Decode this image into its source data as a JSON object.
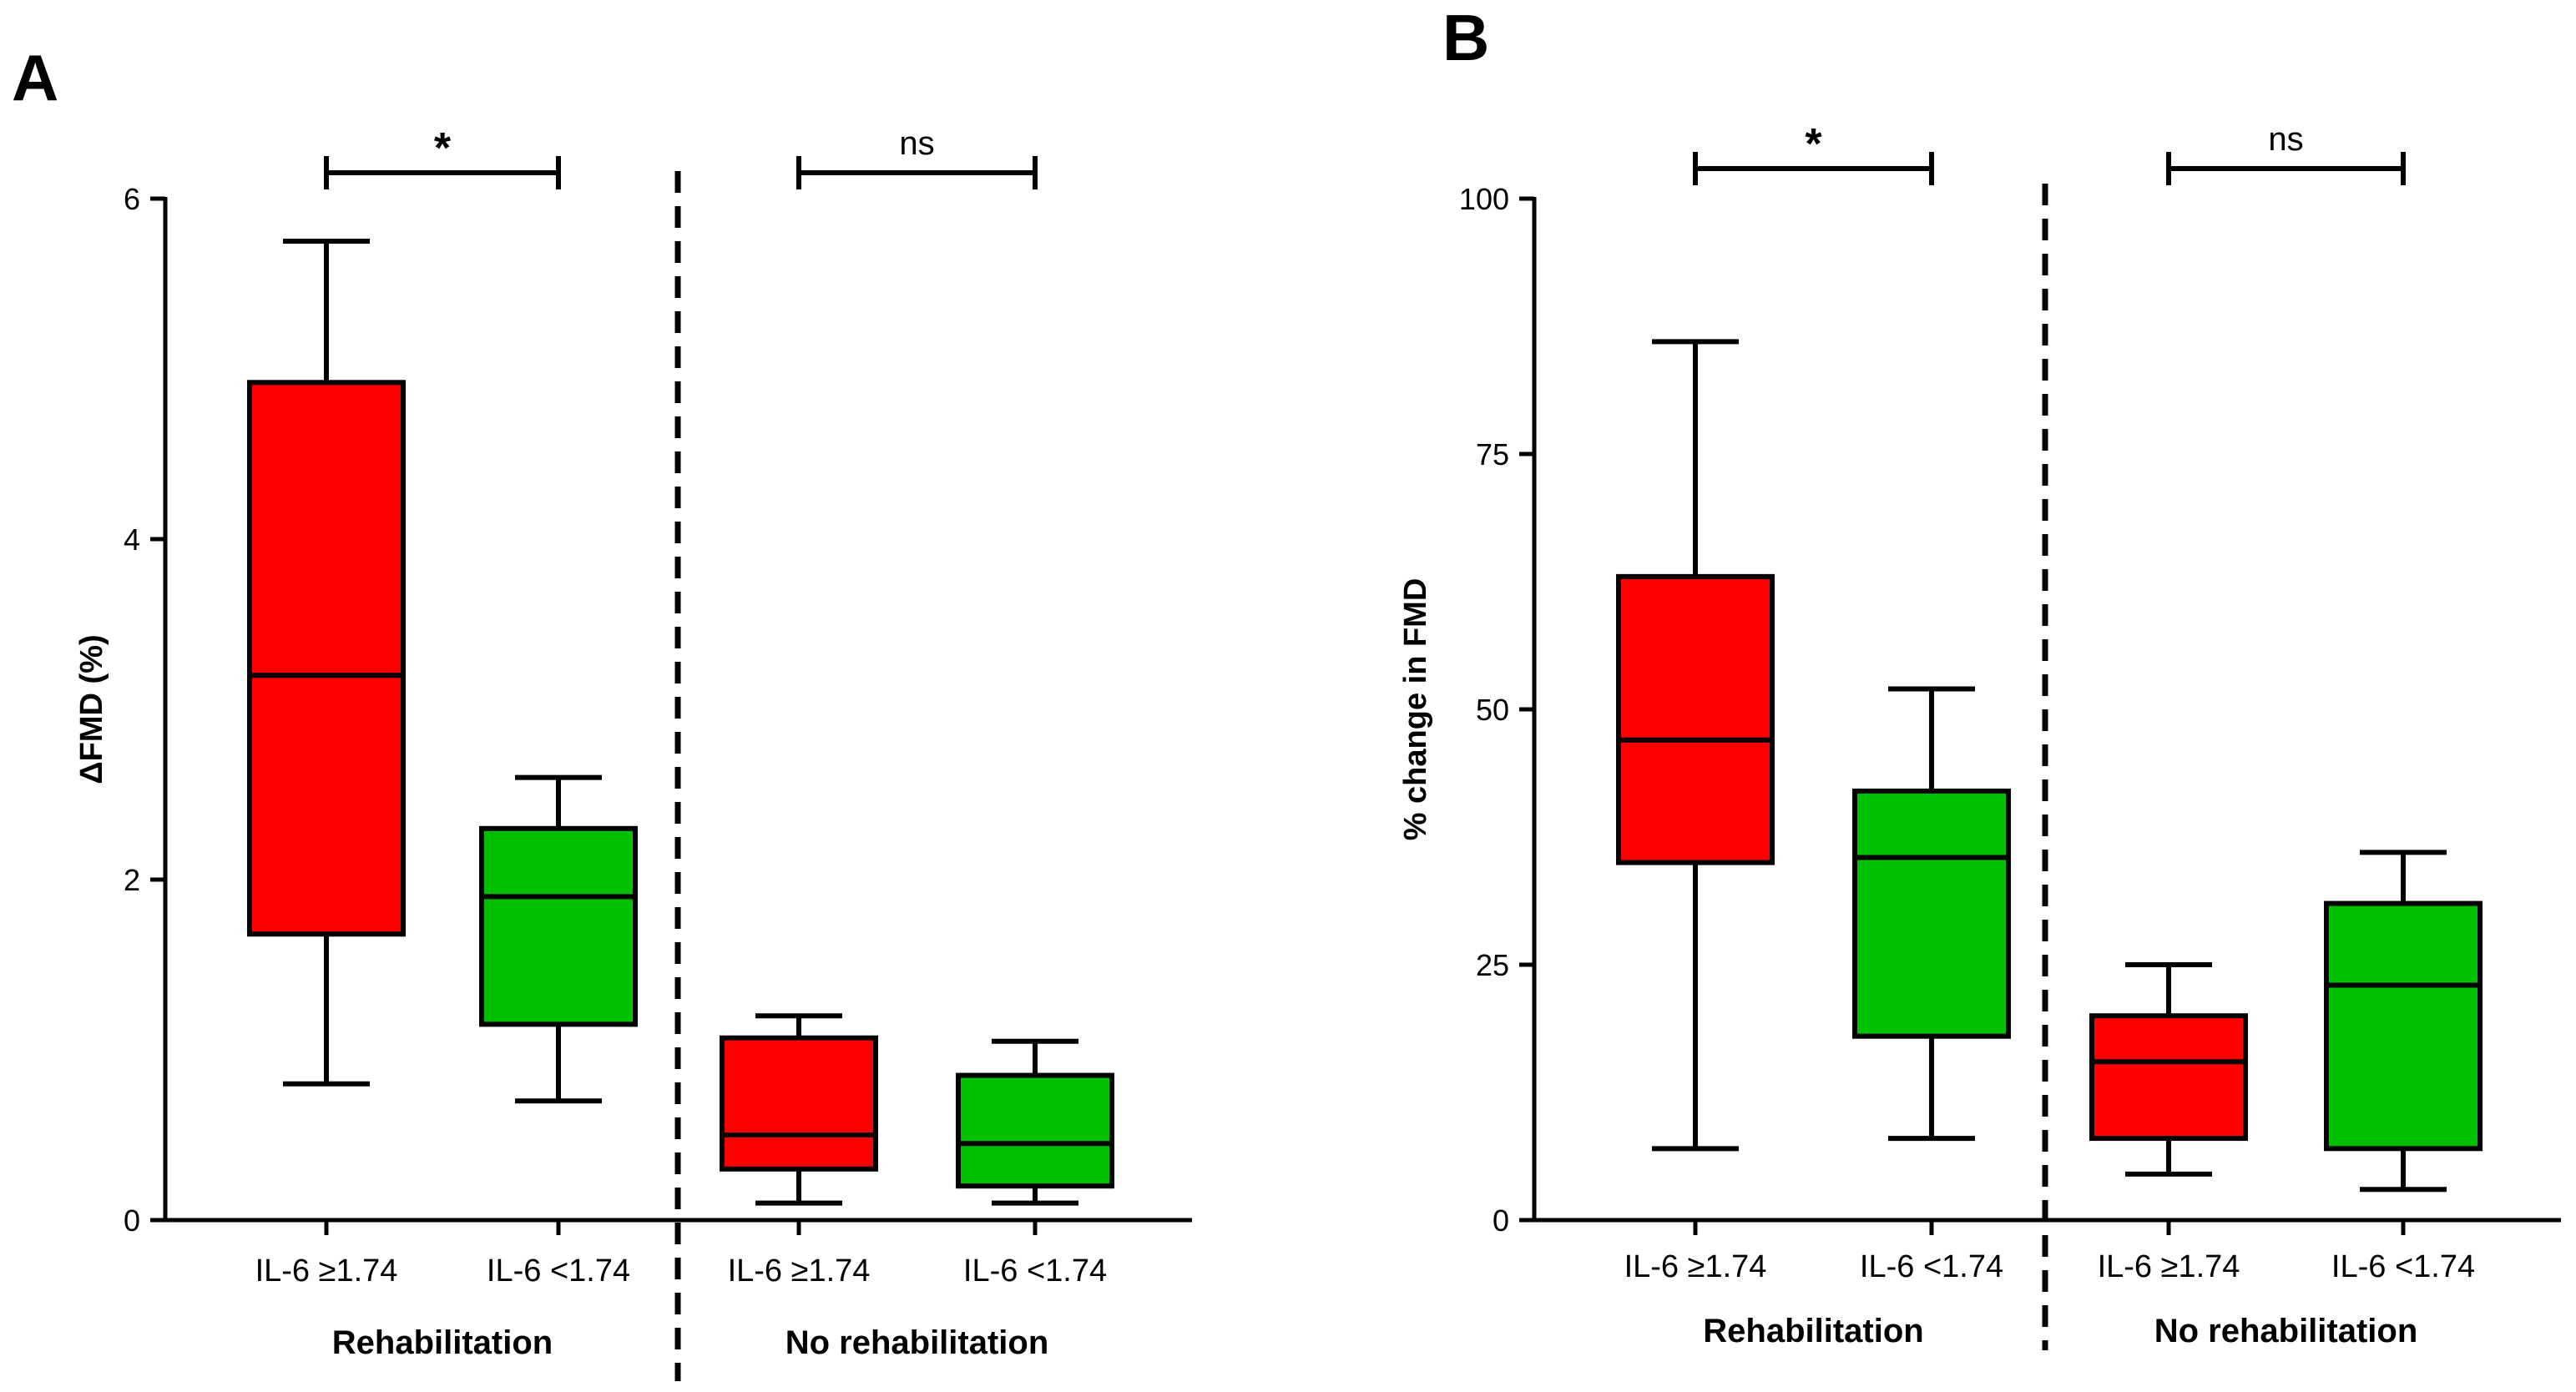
{
  "chart_data": [
    {
      "panel": "A",
      "type": "box",
      "ylabel": "ΔFMD (%)",
      "ylim": [
        0,
        6
      ],
      "yticks": [
        0,
        2,
        4,
        6
      ],
      "categories": [
        "IL-6 ≥1.74",
        "IL-6 <1.74",
        "IL-6 ≥1.74",
        "IL-6 <1.74"
      ],
      "groups": [
        {
          "label": "Rehabilitation",
          "members": [
            0,
            1
          ]
        },
        {
          "label": "No rehabilitation",
          "members": [
            2,
            3
          ]
        }
      ],
      "boxes": [
        {
          "min": 0.8,
          "q1": 1.68,
          "median": 3.2,
          "q3": 4.92,
          "max": 5.75,
          "color": "#ff0000"
        },
        {
          "min": 0.7,
          "q1": 1.15,
          "median": 1.9,
          "q3": 2.3,
          "max": 2.6,
          "color": "#00c000"
        },
        {
          "min": 0.1,
          "q1": 0.3,
          "median": 0.5,
          "q3": 1.07,
          "max": 1.2,
          "color": "#ff0000"
        },
        {
          "min": 0.1,
          "q1": 0.2,
          "median": 0.45,
          "q3": 0.85,
          "max": 1.05,
          "color": "#00c000"
        }
      ],
      "significance": [
        {
          "between": [
            0,
            1
          ],
          "label": "*"
        },
        {
          "between": [
            2,
            3
          ],
          "label": "ns"
        }
      ]
    },
    {
      "panel": "B",
      "type": "box",
      "ylabel": "% change in FMD",
      "ylim": [
        0,
        100
      ],
      "yticks": [
        0,
        25,
        50,
        75,
        100
      ],
      "categories": [
        "IL-6 ≥1.74",
        "IL-6 <1.74",
        "IL-6 ≥1.74",
        "IL-6 <1.74"
      ],
      "groups": [
        {
          "label": "Rehabilitation",
          "members": [
            0,
            1
          ]
        },
        {
          "label": "No rehabilitation",
          "members": [
            2,
            3
          ]
        }
      ],
      "boxes": [
        {
          "min": 7,
          "q1": 35,
          "median": 47,
          "q3": 63,
          "max": 86,
          "color": "#ff0000"
        },
        {
          "min": 8,
          "q1": 18,
          "median": 35.5,
          "q3": 42,
          "max": 52,
          "color": "#00c000"
        },
        {
          "min": 4.5,
          "q1": 8,
          "median": 15.5,
          "q3": 20,
          "max": 25,
          "color": "#ff0000"
        },
        {
          "min": 3,
          "q1": 7,
          "median": 23,
          "q3": 31,
          "max": 36,
          "color": "#00c000"
        }
      ],
      "significance": [
        {
          "between": [
            0,
            1
          ],
          "label": "*"
        },
        {
          "between": [
            2,
            3
          ],
          "label": "ns"
        }
      ]
    }
  ]
}
